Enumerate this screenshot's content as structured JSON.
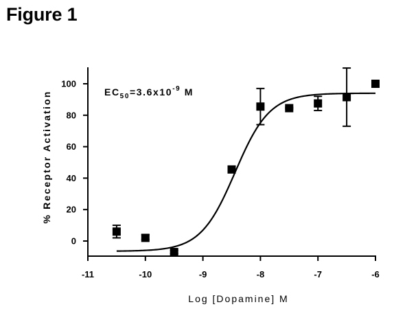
{
  "page": {
    "figure_title": "Figure 1"
  },
  "chart_data": {
    "type": "scatter",
    "title": "",
    "xlabel": "Log [Dopamine] M",
    "ylabel": "% Receptor Activation",
    "xlim": [
      -11,
      -6
    ],
    "ylim": [
      -10,
      110
    ],
    "x_ticks": [
      -11,
      -10,
      -9,
      -8,
      -7,
      -6
    ],
    "x_tick_labels": [
      "-11",
      "-10",
      "-9",
      "-8",
      "-7",
      "-6"
    ],
    "y_ticks": [
      0,
      20,
      40,
      60,
      80,
      100
    ],
    "y_tick_labels": [
      "0",
      "20",
      "40",
      "60",
      "80",
      "100"
    ],
    "grid": false,
    "legend": "none",
    "marker": "square",
    "series": [
      {
        "points": [
          {
            "x": -10.5,
            "y": 6,
            "err_low": 2,
            "err_high": 10
          },
          {
            "x": -10.0,
            "y": 2,
            "err_low": 1,
            "err_high": 4
          },
          {
            "x": -9.5,
            "y": -7,
            "err_low": -8,
            "err_high": -6
          },
          {
            "x": -8.5,
            "y": 45.5,
            "err_low": 45,
            "err_high": 46
          },
          {
            "x": -8.0,
            "y": 85.5,
            "err_low": 74,
            "err_high": 97
          },
          {
            "x": -7.5,
            "y": 84.5,
            "err_low": 84,
            "err_high": 85
          },
          {
            "x": -7.0,
            "y": 87.5,
            "err_low": 83,
            "err_high": 92
          },
          {
            "x": -6.5,
            "y": 91.5,
            "err_low": 73,
            "err_high": 110
          },
          {
            "x": -6.0,
            "y": 100,
            "err_low": 99.5,
            "err_high": 100.5
          }
        ]
      }
    ],
    "fit_curve": {
      "model": "sigmoidal dose-response",
      "bottom": -6.5,
      "top": 94,
      "log_ec50": -8.44,
      "hill_slope": 1.45,
      "x_range": [
        -10.5,
        -6
      ]
    },
    "annotation": {
      "prefix": "EC",
      "subscript": "50",
      "value_text": "=3.6x10",
      "exponent": "-9",
      "unit": " M"
    },
    "colors": {
      "axis": "#000000",
      "marker": "#000000",
      "curve": "#000000"
    }
  }
}
